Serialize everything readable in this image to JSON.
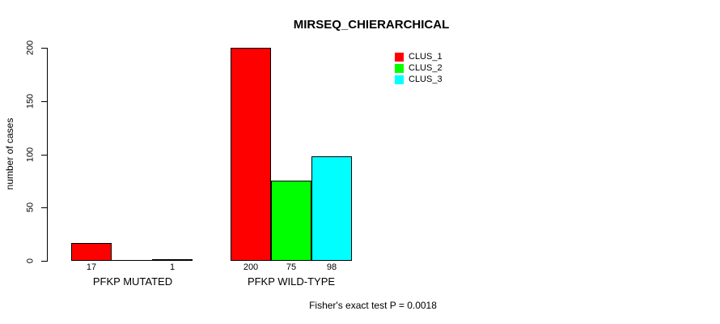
{
  "chart_data": {
    "type": "bar",
    "title": "MIRSEQ_CHIERARCHICAL",
    "ylabel": "number of cases",
    "xlabel": "",
    "ylim": [
      0,
      200
    ],
    "yticks": [
      0,
      50,
      100,
      150,
      200
    ],
    "grid": false,
    "legend_position": "top-right",
    "categories": [
      "PFKP MUTATED",
      "PFKP WILD-TYPE"
    ],
    "series": [
      {
        "name": "CLUS_1",
        "color": "#ff0000",
        "values": [
          17,
          200
        ]
      },
      {
        "name": "CLUS_2",
        "color": "#00ff00",
        "values": [
          0,
          75
        ]
      },
      {
        "name": "CLUS_3",
        "color": "#00ffff",
        "values": [
          1,
          98
        ]
      }
    ],
    "bar_count_labels": [
      [
        "17",
        "",
        "1"
      ],
      [
        "200",
        "75",
        "98"
      ]
    ],
    "footnote": "Fisher's exact test P = 0.0018"
  }
}
